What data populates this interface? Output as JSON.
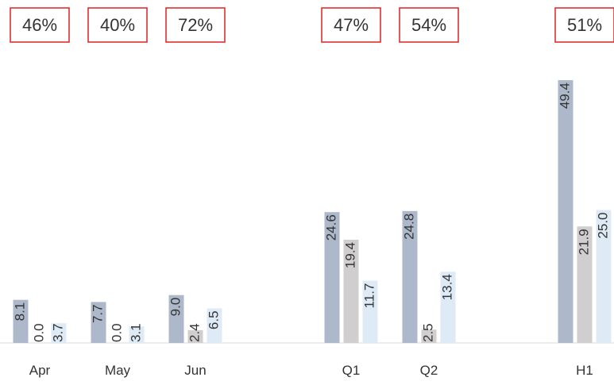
{
  "chart_data": {
    "type": "bar",
    "categories": [
      "Apr",
      "May",
      "Jun",
      null,
      "Q1",
      "Q2",
      null,
      "H1"
    ],
    "percent_labels": [
      "46%",
      "40%",
      "72%",
      null,
      "47%",
      "54%",
      null,
      "51%"
    ],
    "series": [
      {
        "color": "#adb9ca",
        "values": [
          8.1,
          7.7,
          9,
          null,
          24.6,
          24.8,
          null,
          49.4
        ],
        "value_labels": [
          "8.1",
          "7.7",
          "9.0",
          null,
          "24.6",
          "24.8",
          null,
          "49.4"
        ]
      },
      {
        "color": "#d0cece",
        "values": [
          0,
          0,
          2.4,
          null,
          19.4,
          2.5,
          null,
          21.9
        ],
        "value_labels": [
          "0.0",
          "0.0",
          "2.4",
          null,
          "19.4",
          "2.5",
          null,
          "21.9"
        ]
      },
      {
        "color": "#deebf7",
        "values": [
          3.7,
          3.1,
          6.5,
          null,
          11.7,
          13.4,
          null,
          25
        ],
        "value_labels": [
          "3.7",
          "3.1",
          "6.5",
          null,
          "11.7",
          "13.4",
          null,
          "25.0"
        ]
      }
    ]
  }
}
